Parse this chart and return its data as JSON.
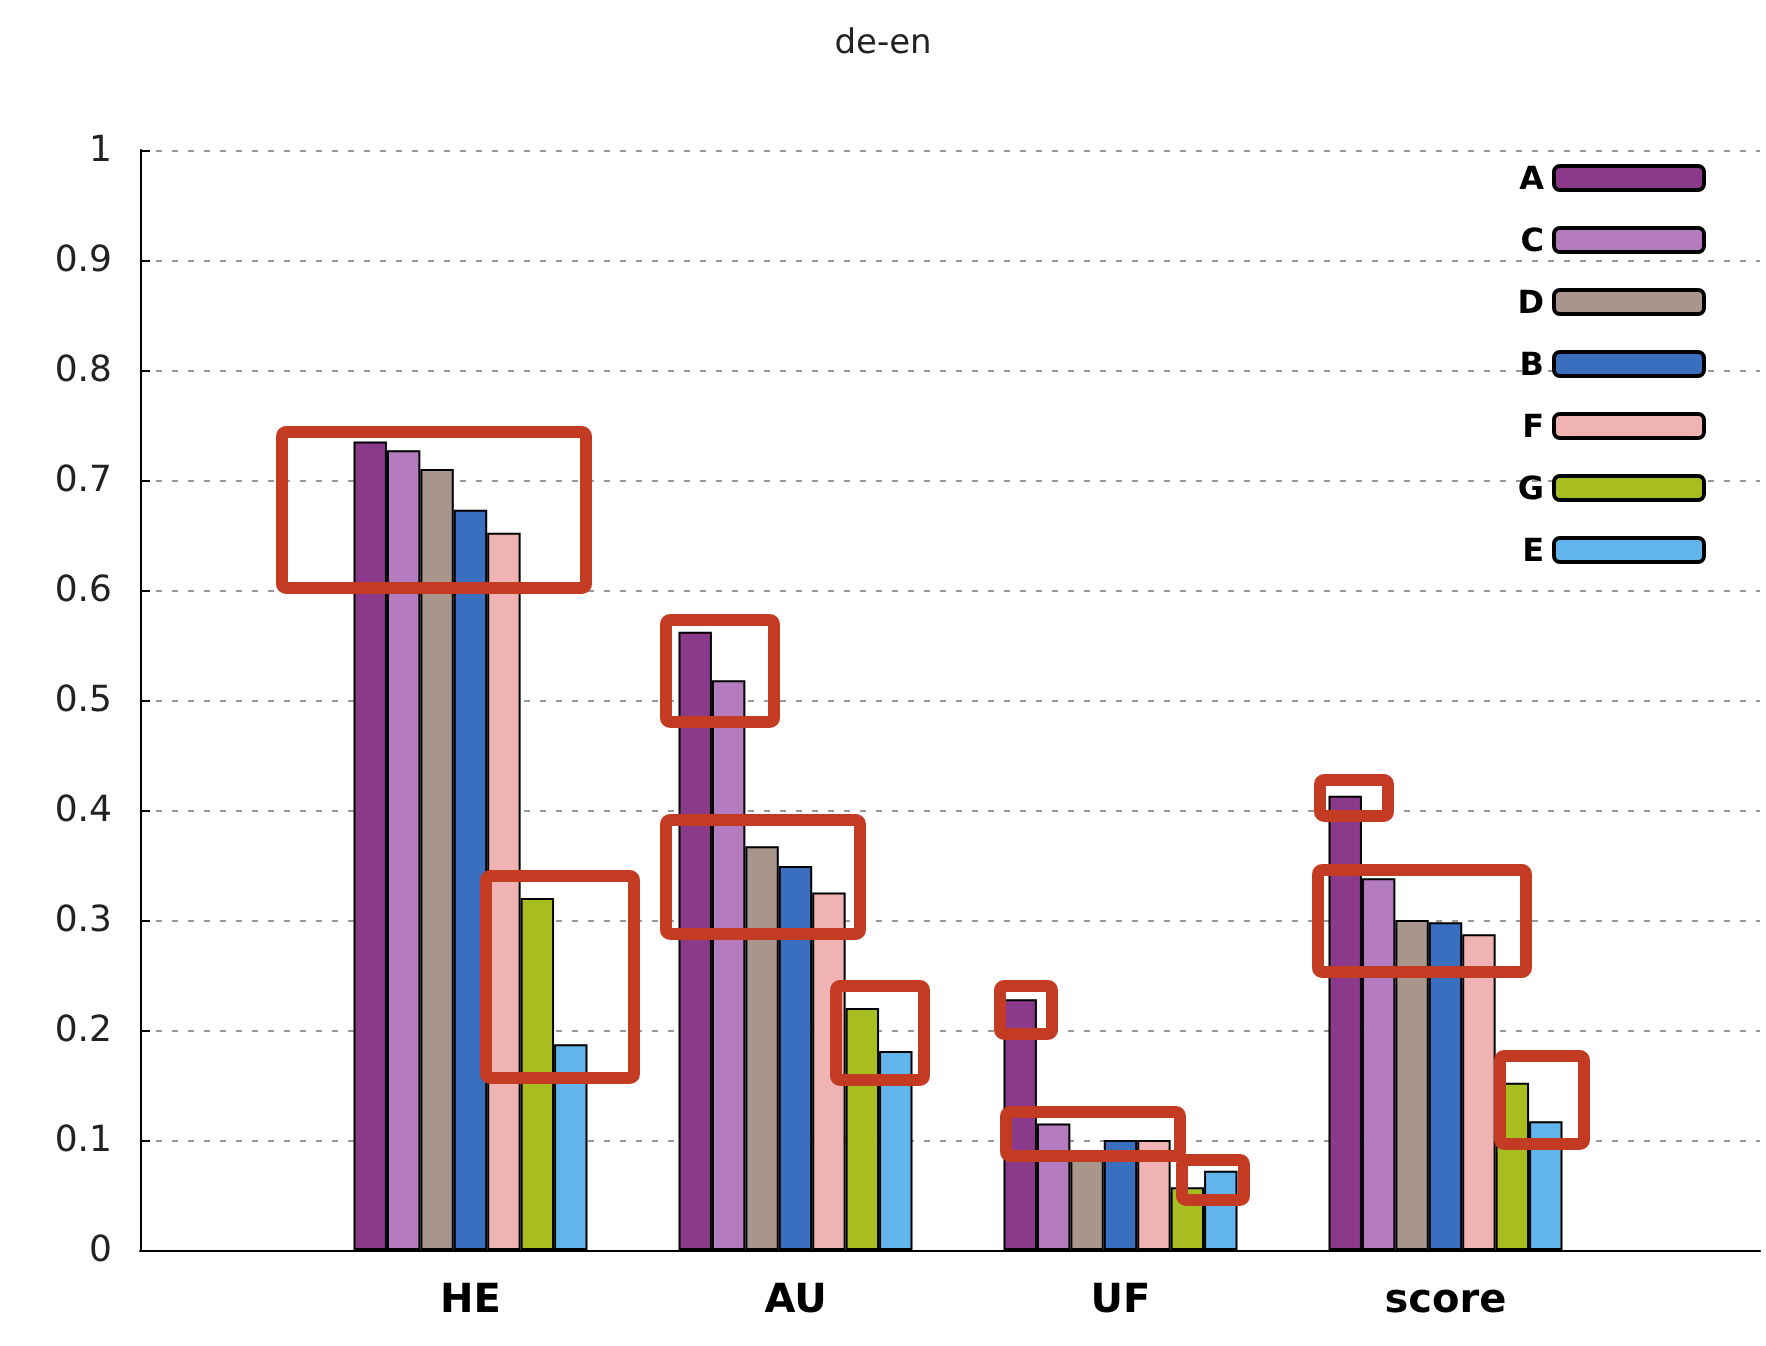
{
  "chart_data": {
    "type": "bar",
    "title": "de-en",
    "categories": [
      "HE",
      "AU",
      "UF",
      "score"
    ],
    "series": [
      {
        "name": "A",
        "color": "#8b3a8b",
        "values": [
          0.735,
          0.562,
          0.228,
          0.413
        ]
      },
      {
        "name": "C",
        "color": "#b57bbf",
        "values": [
          0.727,
          0.518,
          0.115,
          0.338
        ]
      },
      {
        "name": "D",
        "color": "#a8968c",
        "values": [
          0.71,
          0.367,
          0.087,
          0.3
        ]
      },
      {
        "name": "B",
        "color": "#3a6ebf",
        "values": [
          0.673,
          0.349,
          0.1,
          0.298
        ]
      },
      {
        "name": "F",
        "color": "#f0b3b3",
        "values": [
          0.652,
          0.325,
          0.1,
          0.287
        ]
      },
      {
        "name": "G",
        "color": "#a8bd1f",
        "values": [
          0.32,
          0.22,
          0.057,
          0.152
        ]
      },
      {
        "name": "E",
        "color": "#62b4ec",
        "values": [
          0.187,
          0.181,
          0.072,
          0.117
        ]
      }
    ],
    "ylim": [
      0,
      1
    ],
    "yticks": [
      0,
      0.1,
      0.2,
      0.3,
      0.4,
      0.5,
      0.6,
      0.7,
      0.8,
      0.9,
      1
    ],
    "grid": "y",
    "legend": "top right"
  }
}
